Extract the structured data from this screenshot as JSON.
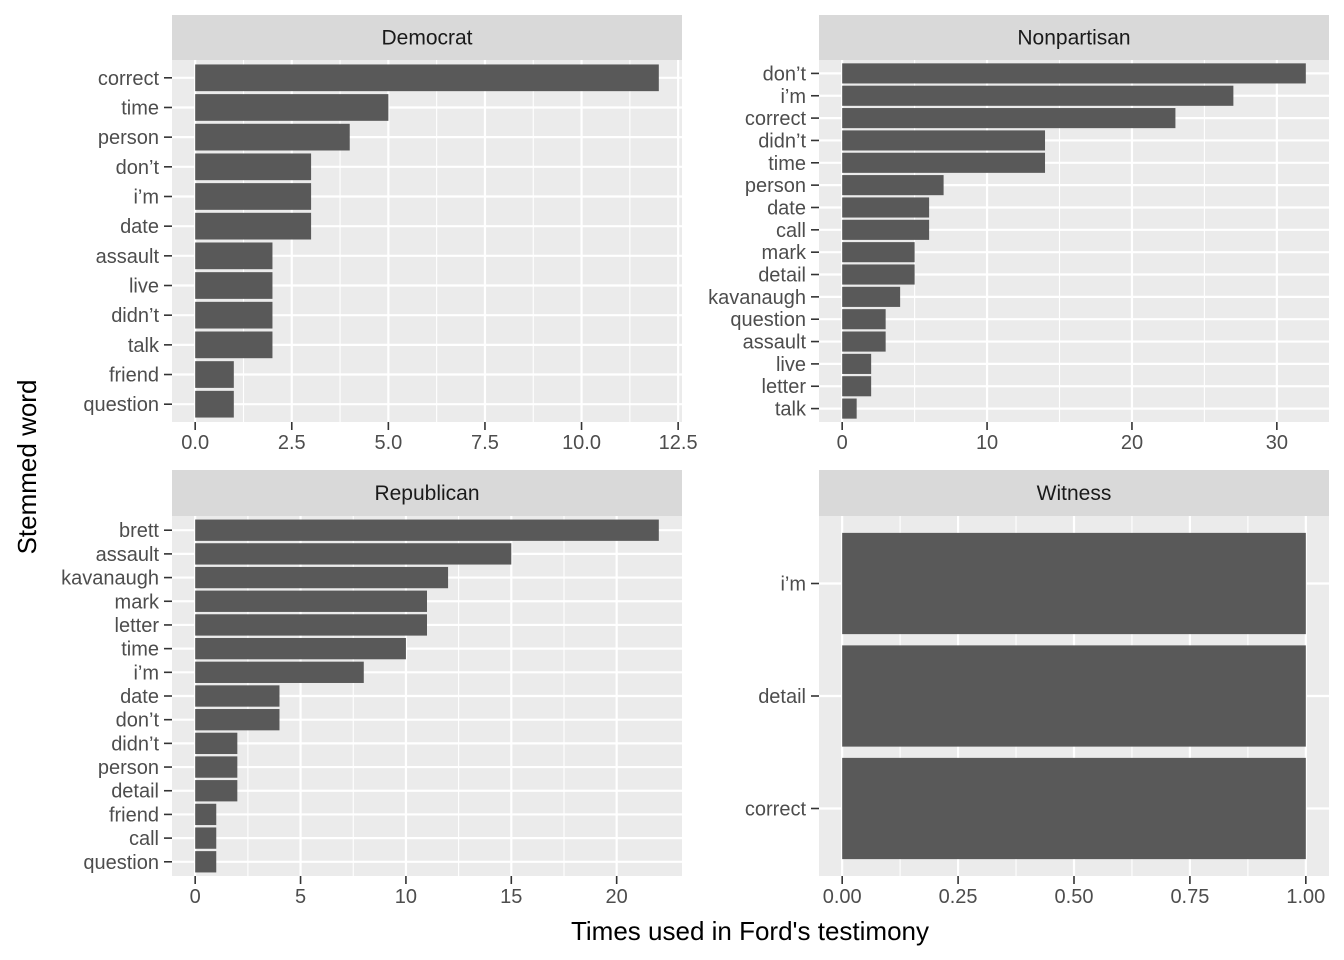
{
  "chart_data": {
    "type": "bar",
    "orientation": "horizontal",
    "facet": true,
    "xlabel": "Times used in Ford's testimony",
    "ylabel": "Stemmed word",
    "grid": true,
    "bar_color": "#595959",
    "panel_background": "#ebebeb",
    "strip_background": "#d9d9d9",
    "panels": [
      {
        "name": "Democrat",
        "categories": [
          "correct",
          "time",
          "person",
          "don’t",
          "i’m",
          "date",
          "assault",
          "live",
          "didn’t",
          "talk",
          "friend",
          "question"
        ],
        "values": [
          12,
          5,
          4,
          3,
          3,
          3,
          2,
          2,
          2,
          2,
          1,
          1
        ],
        "xlim": [
          -0.6,
          12.6
        ],
        "xticks": [
          0,
          2.5,
          5,
          7.5,
          10,
          12.5
        ],
        "xtick_labels": [
          "0.0",
          "2.5",
          "5.0",
          "7.5",
          "10.0",
          "12.5"
        ]
      },
      {
        "name": "Nonpartisan",
        "categories": [
          "don’t",
          "i’m",
          "correct",
          "didn’t",
          "time",
          "person",
          "date",
          "call",
          "mark",
          "detail",
          "kavanaugh",
          "question",
          "assault",
          "live",
          "letter",
          "talk"
        ],
        "values": [
          32,
          27,
          23,
          14,
          14,
          7,
          6,
          6,
          5,
          5,
          4,
          3,
          3,
          2,
          2,
          1
        ],
        "xlim": [
          -1.6,
          33.6
        ],
        "xticks": [
          0,
          10,
          20,
          30
        ],
        "xtick_labels": [
          "0",
          "10",
          "20",
          "30"
        ]
      },
      {
        "name": "Republican",
        "categories": [
          "brett",
          "assault",
          "kavanaugh",
          "mark",
          "letter",
          "time",
          "i’m",
          "date",
          "don’t",
          "didn’t",
          "person",
          "detail",
          "friend",
          "call",
          "question"
        ],
        "values": [
          22,
          15,
          12,
          11,
          11,
          10,
          8,
          4,
          4,
          2,
          2,
          2,
          1,
          1,
          1
        ],
        "xlim": [
          -1.1,
          23.1
        ],
        "xticks": [
          0,
          5,
          10,
          15,
          20
        ],
        "xtick_labels": [
          "0",
          "5",
          "10",
          "15",
          "20"
        ]
      },
      {
        "name": "Witness",
        "categories": [
          "i’m",
          "detail",
          "correct"
        ],
        "values": [
          1,
          1,
          1
        ],
        "xlim": [
          -0.05,
          1.05
        ],
        "xticks": [
          0,
          0.25,
          0.5,
          0.75,
          1
        ],
        "xtick_labels": [
          "0.00",
          "0.25",
          "0.50",
          "0.75",
          "1.00"
        ]
      }
    ]
  }
}
